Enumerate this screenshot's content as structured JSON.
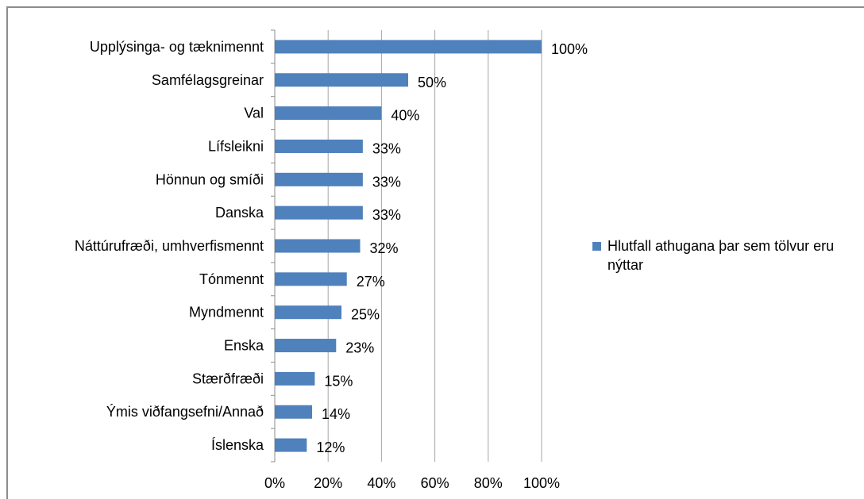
{
  "chart_data": {
    "type": "bar",
    "orientation": "horizontal",
    "categories": [
      "Upplýsinga- og tæknimennt",
      "Samfélagsgreinar",
      "Val",
      "Lífsleikni",
      "Hönnun og smíði",
      "Danska",
      "Náttúrufræði, umhverfismennt",
      "Tónmennt",
      "Myndmennt",
      "Enska",
      "Stærðfræði",
      "Ýmis viðfangsefni/Annað",
      "Íslenska"
    ],
    "series": [
      {
        "name": "Hlutfall athugana þar sem tölvur eru nýttar",
        "values": [
          100,
          50,
          40,
          33,
          33,
          33,
          32,
          27,
          25,
          23,
          15,
          14,
          12
        ],
        "labels": [
          "100%",
          "50%",
          "40%",
          "33%",
          "33%",
          "33%",
          "32%",
          "27%",
          "25%",
          "23%",
          "15%",
          "14%",
          "12%"
        ]
      }
    ],
    "xlim": [
      0,
      100
    ],
    "x_ticks": [
      "0%",
      "20%",
      "40%",
      "60%",
      "80%",
      "100%"
    ],
    "x_tick_values": [
      0,
      20,
      40,
      60,
      80,
      100
    ],
    "grid": true,
    "legend_position": "right",
    "colors": {
      "bar": "#4f81bd",
      "grid": "#a6a6a6",
      "axis": "#8c8c8c"
    }
  },
  "legend": {
    "label": "Hlutfall athugana þar sem tölvur eru nýttar"
  }
}
